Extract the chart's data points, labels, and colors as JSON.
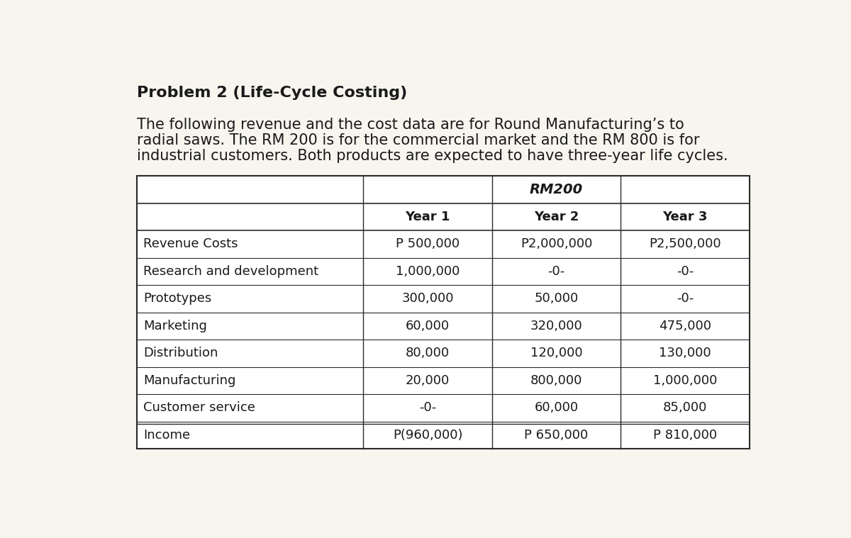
{
  "title": "Problem 2 (Life-Cycle Costing)",
  "paragraph_lines": [
    "The following revenue and the cost data are for Round Manufacturing’s to",
    "radial saws. The RM 200 is for the commercial market and the RM 800 is for",
    "industrial customers. Both products are expected to have three-year life cycles."
  ],
  "table_header_main": "RM200",
  "col_headers": [
    "Year 1",
    "Year 2",
    "Year 3"
  ],
  "row_labels": [
    "Revenue Costs",
    "Research and development",
    "Prototypes",
    "Marketing",
    "Distribution",
    "Manufacturing",
    "Customer service",
    "Income"
  ],
  "data": [
    [
      "P 500,000",
      "P2,000,000",
      "P2,500,000"
    ],
    [
      "1,000,000",
      "-0-",
      "-0-"
    ],
    [
      "300,000",
      "50,000",
      "-0-"
    ],
    [
      "60,000",
      "320,000",
      "475,000"
    ],
    [
      "80,000",
      "120,000",
      "130,000"
    ],
    [
      "20,000",
      "800,000",
      "1,000,000"
    ],
    [
      "-0-",
      "60,000",
      "85,000"
    ],
    [
      "P(960,000)",
      "P 650,000",
      "P 810,000"
    ]
  ],
  "background_color": "#f8f5ef",
  "text_color": "#1a1a1a",
  "title_fontsize": 16,
  "para_fontsize": 15,
  "table_fontsize": 13
}
